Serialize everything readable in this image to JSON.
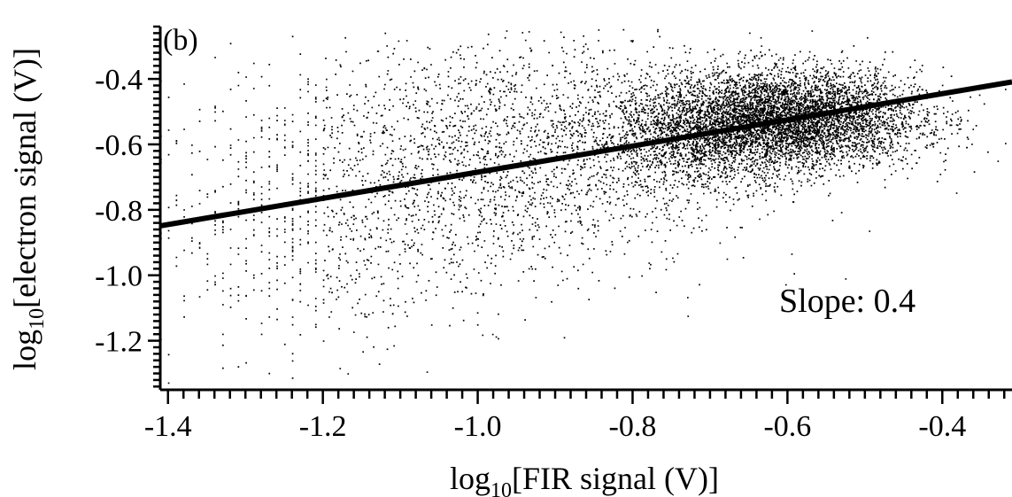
{
  "chart_data": {
    "type": "scatter",
    "panel_label": "(b)",
    "xlabel": {
      "prefix": "log",
      "subscript": "10",
      "text": "[FIR signal (V)]"
    },
    "ylabel": {
      "prefix": "log",
      "subscript": "10",
      "text": "[electron signal (V)]"
    },
    "xlim": [
      -1.41,
      -0.31
    ],
    "ylim": [
      -1.35,
      -0.24
    ],
    "x_ticks": [
      -1.4,
      -1.2,
      -1.0,
      -0.8,
      -0.6,
      -0.4
    ],
    "x_tick_labels": [
      "-1.4",
      "-1.2",
      "-1.0",
      "-0.8",
      "-0.6",
      "-0.4"
    ],
    "y_ticks": [
      -1.2,
      -1.0,
      -0.8,
      -0.6,
      -0.4
    ],
    "y_tick_labels": [
      "-1.2",
      "-1.0",
      "-0.8",
      "-0.6",
      "-0.4"
    ],
    "x_minor_step": 0.02,
    "y_minor_step": 0.02,
    "annotation": "Slope: 0.4",
    "fit_line": {
      "slope": 0.4,
      "intercept": -0.285,
      "x_range": [
        -1.41,
        -0.31
      ]
    },
    "scatter_clusters": [
      {
        "cx": -0.6,
        "cy": -0.52,
        "sx": 0.085,
        "sy": 0.075,
        "n": 5200
      },
      {
        "cx": -0.72,
        "cy": -0.58,
        "sx": 0.07,
        "sy": 0.08,
        "n": 1400
      },
      {
        "cx": -0.95,
        "cy": -0.62,
        "sx": 0.15,
        "sy": 0.18,
        "n": 2200
      },
      {
        "cx": -1.2,
        "cy": -0.85,
        "sx": 0.13,
        "sy": 0.2,
        "n": 700
      }
    ],
    "grid": false,
    "legend": "none"
  }
}
